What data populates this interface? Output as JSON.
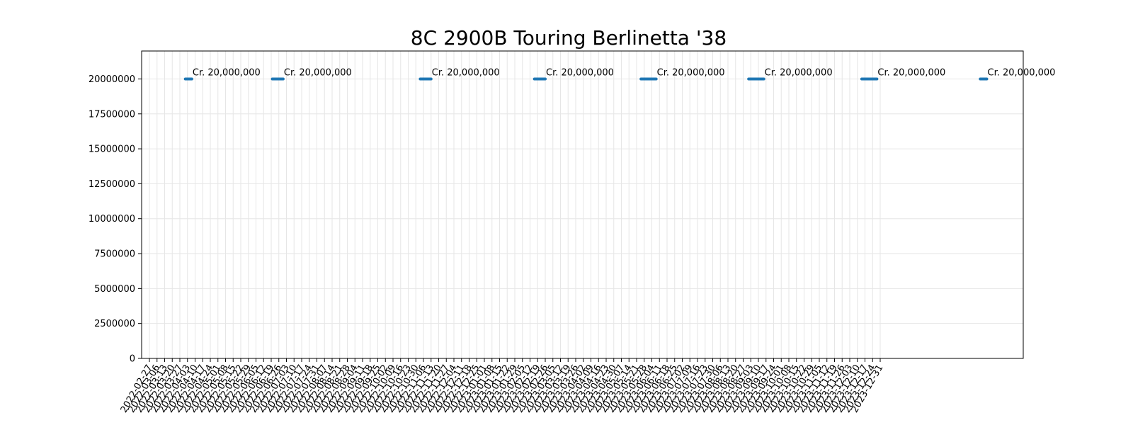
{
  "chart_data": {
    "type": "line",
    "title": "8C 2900B Touring Berlinetta '38",
    "xlabel": "",
    "ylabel": "",
    "x_ticks": [
      "2022-02-27",
      "2022-03-06",
      "2022-03-13",
      "2022-03-20",
      "2022-03-27",
      "2022-04-03",
      "2022-04-10",
      "2022-04-17",
      "2022-04-24",
      "2022-05-01",
      "2022-05-08",
      "2022-05-15",
      "2022-05-22",
      "2022-05-29",
      "2022-06-05",
      "2022-06-12",
      "2022-06-19",
      "2022-06-26",
      "2022-07-03",
      "2022-07-10",
      "2022-07-17",
      "2022-07-24",
      "2022-07-31",
      "2022-08-07",
      "2022-08-14",
      "2022-08-21",
      "2022-08-28",
      "2022-09-04",
      "2022-09-11",
      "2022-09-18",
      "2022-09-25",
      "2022-10-02",
      "2022-10-09",
      "2022-10-16",
      "2022-10-23",
      "2022-10-30",
      "2022-11-06",
      "2022-11-13",
      "2022-11-20",
      "2022-11-27",
      "2022-12-04",
      "2022-12-11",
      "2022-12-18",
      "2022-12-25",
      "2023-01-01",
      "2023-01-08",
      "2023-01-15",
      "2023-01-22",
      "2023-01-29",
      "2023-02-05",
      "2023-02-12",
      "2023-02-19",
      "2023-02-26",
      "2023-03-05",
      "2023-03-12",
      "2023-03-19",
      "2023-03-26",
      "2023-04-02",
      "2023-04-09",
      "2023-04-16",
      "2023-04-23",
      "2023-04-30",
      "2023-05-07",
      "2023-05-14",
      "2023-05-21",
      "2023-05-28",
      "2023-06-04",
      "2023-06-11",
      "2023-06-18",
      "2023-06-25",
      "2023-07-02",
      "2023-07-09",
      "2023-07-16",
      "2023-07-23",
      "2023-07-30",
      "2023-08-06",
      "2023-08-13",
      "2023-08-20",
      "2023-08-27",
      "2023-09-03",
      "2023-09-10",
      "2023-09-17",
      "2023-09-24",
      "2023-10-01",
      "2023-10-08",
      "2023-10-15",
      "2023-10-22",
      "2023-10-29",
      "2023-11-05",
      "2023-11-12",
      "2023-11-19",
      "2023-11-26",
      "2023-12-03",
      "2023-12-10",
      "2023-12-17",
      "2023-12-24",
      "2023-12-31"
    ],
    "y_ticks": [
      "0",
      "2500000",
      "5000000",
      "7500000",
      "10000000",
      "12500000",
      "15000000",
      "17500000",
      "20000000"
    ],
    "ylim": [
      0,
      22000000
    ],
    "grid": true,
    "series": [
      {
        "color": "#1f77b4",
        "segments": [
          {
            "start": "2022-04-01",
            "end": "2022-04-07",
            "value": 20000000,
            "label": "Cr. 20,000,000"
          },
          {
            "start": "2022-06-20",
            "end": "2022-06-30",
            "value": 20000000,
            "label": "Cr. 20,000,000"
          },
          {
            "start": "2022-11-03",
            "end": "2022-11-13",
            "value": 20000000,
            "label": "Cr. 20,000,000"
          },
          {
            "start": "2023-02-16",
            "end": "2023-02-26",
            "value": 20000000,
            "label": "Cr. 20,000,000"
          },
          {
            "start": "2023-05-25",
            "end": "2023-06-08",
            "value": 20000000,
            "label": "Cr. 20,000,000"
          },
          {
            "start": "2023-09-01",
            "end": "2023-09-15",
            "value": 20000000,
            "label": "Cr. 20,000,000"
          },
          {
            "start": "2023-12-14",
            "end": "2023-12-28",
            "value": 20000000,
            "label": "Cr. 20,000,000"
          },
          {
            "start": "2024-04-01",
            "end": "2024-04-07",
            "value": 20000000,
            "label": "Cr. 20,000,000"
          }
        ]
      }
    ]
  }
}
